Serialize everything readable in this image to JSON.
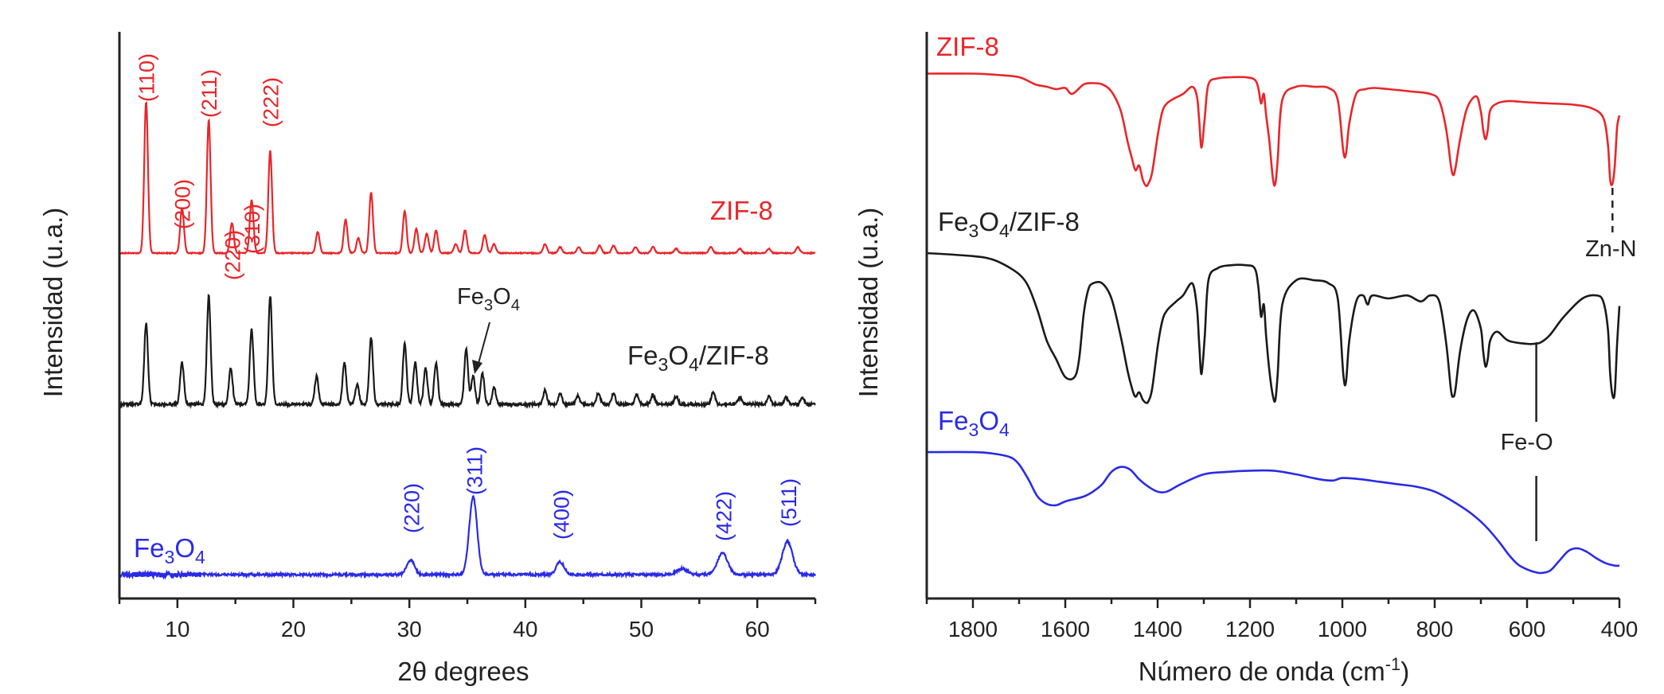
{
  "colors": {
    "zif8": "#e8262a",
    "composite": "#1a1a1a",
    "fe3o4": "#2a2ae6",
    "axis": "#222222"
  },
  "chart_data": [
    {
      "type": "line",
      "xlabel": "2θ degrees",
      "ylabel": "Intensidad (u.a.)",
      "xlim": [
        5,
        65
      ],
      "xticks": [
        10,
        20,
        30,
        40,
        50,
        60
      ],
      "series": [
        {
          "name": "ZIF-8",
          "color": "#e8262a",
          "peaks": [
            [
              7.3,
              1.0
            ],
            [
              10.4,
              0.3
            ],
            [
              12.7,
              0.88
            ],
            [
              14.7,
              0.2
            ],
            [
              16.4,
              0.35
            ],
            [
              18.0,
              0.68
            ],
            [
              22.1,
              0.14
            ],
            [
              24.5,
              0.22
            ],
            [
              25.6,
              0.1
            ],
            [
              26.7,
              0.4
            ],
            [
              29.6,
              0.28
            ],
            [
              30.6,
              0.16
            ],
            [
              31.5,
              0.13
            ],
            [
              32.3,
              0.15
            ],
            [
              34.0,
              0.06
            ],
            [
              34.8,
              0.15
            ],
            [
              36.5,
              0.12
            ],
            [
              37.3,
              0.06
            ],
            [
              41.7,
              0.06
            ],
            [
              43.0,
              0.04
            ],
            [
              44.6,
              0.04
            ],
            [
              46.4,
              0.05
            ],
            [
              47.6,
              0.05
            ],
            [
              49.5,
              0.04
            ],
            [
              51.0,
              0.04
            ],
            [
              53.0,
              0.03
            ],
            [
              56.0,
              0.04
            ],
            [
              58.5,
              0.03
            ],
            [
              61.0,
              0.03
            ],
            [
              63.5,
              0.04
            ]
          ]
        },
        {
          "name": "Fe3O4/ZIF-8",
          "color": "#1a1a1a",
          "peaks": [
            [
              7.3,
              0.58
            ],
            [
              10.4,
              0.3
            ],
            [
              12.7,
              0.78
            ],
            [
              14.6,
              0.26
            ],
            [
              16.4,
              0.54
            ],
            [
              18.0,
              0.78
            ],
            [
              22.0,
              0.2
            ],
            [
              24.4,
              0.3
            ],
            [
              25.5,
              0.14
            ],
            [
              26.7,
              0.48
            ],
            [
              29.6,
              0.44
            ],
            [
              30.5,
              0.3
            ],
            [
              31.4,
              0.26
            ],
            [
              32.3,
              0.3
            ],
            [
              34.9,
              0.4
            ],
            [
              35.5,
              0.2
            ],
            [
              36.3,
              0.22
            ],
            [
              37.3,
              0.12
            ],
            [
              41.7,
              0.1
            ],
            [
              43.0,
              0.08
            ],
            [
              44.5,
              0.06
            ],
            [
              46.3,
              0.08
            ],
            [
              47.6,
              0.08
            ],
            [
              49.6,
              0.07
            ],
            [
              51.0,
              0.07
            ],
            [
              53.0,
              0.06
            ],
            [
              56.2,
              0.09
            ],
            [
              58.5,
              0.05
            ],
            [
              61.0,
              0.06
            ],
            [
              62.5,
              0.05
            ],
            [
              63.9,
              0.05
            ]
          ]
        },
        {
          "name": "Fe3O4",
          "color": "#2a2ae6",
          "peaks": [
            [
              30.1,
              0.15
            ],
            [
              35.5,
              0.8
            ],
            [
              43.0,
              0.13
            ],
            [
              53.5,
              0.06
            ],
            [
              57.0,
              0.22
            ],
            [
              62.6,
              0.34
            ]
          ]
        }
      ],
      "labels": [
        {
          "text": "ZIF-8",
          "sub": "",
          "series": "ZIF-8"
        },
        {
          "text": "Fe",
          "sub": "3",
          "text2": "O",
          "sub2": "4",
          "text3": "/ZIF-8",
          "series": "Fe3O4/ZIF-8"
        },
        {
          "text": "Fe",
          "sub": "3",
          "text2": "O",
          "sub2": "4",
          "text3": "",
          "series": "Fe3O4"
        }
      ],
      "hkl_zif8": [
        {
          "text": "(110)",
          "x": 7.3
        },
        {
          "text": "(200)",
          "x": 10.4
        },
        {
          "text": "(211)",
          "x": 12.7
        },
        {
          "text": "(220)",
          "x": 14.7
        },
        {
          "text": "(310)",
          "x": 16.4
        },
        {
          "text": "(222)",
          "x": 18.0
        }
      ],
      "hkl_fe3o4": [
        {
          "text": "(220)",
          "x": 30.1
        },
        {
          "text": "(311)",
          "x": 35.5
        },
        {
          "text": "(400)",
          "x": 43.0
        },
        {
          "text": "(422)",
          "x": 57.0
        },
        {
          "text": "(511)",
          "x": 62.6
        }
      ],
      "annotation": {
        "text": "Fe",
        "sub": "3",
        "text2": "O",
        "sub2": "4",
        "x": 35.5
      }
    },
    {
      "type": "line",
      "xlabel": "Número de onda (cm",
      "xlabel_sup": "-1",
      "xlabel_end": ")",
      "ylabel": "Intensidad (u.a.)",
      "xlim": [
        1900,
        400
      ],
      "xticks": [
        1800,
        1600,
        1400,
        1200,
        1000,
        800,
        600,
        400
      ],
      "series": [
        {
          "name": "ZIF-8",
          "color": "#e8262a",
          "x": [
            1900,
            1800,
            1750,
            1700,
            1665,
            1640,
            1620,
            1600,
            1585,
            1560,
            1540,
            1520,
            1500,
            1480,
            1465,
            1455,
            1448,
            1440,
            1432,
            1425,
            1420,
            1412,
            1400,
            1390,
            1380,
            1365,
            1345,
            1325,
            1315,
            1310,
            1305,
            1298,
            1290,
            1270,
            1240,
            1210,
            1190,
            1182,
            1176,
            1170,
            1165,
            1158,
            1150,
            1145,
            1140,
            1130,
            1100,
            1060,
            1030,
            1010,
            998,
            992,
            985,
            970,
            950,
            930,
            900,
            850,
            810,
            790,
            775,
            765,
            760,
            755,
            745,
            730,
            710,
            700,
            695,
            690,
            685,
            680,
            665,
            640,
            600,
            550,
            500,
            460,
            435,
            425,
            420,
            415,
            410,
            405,
            400
          ],
          "y": [
            0.97,
            0.97,
            0.96,
            0.94,
            0.88,
            0.86,
            0.84,
            0.85,
            0.8,
            0.88,
            0.89,
            0.88,
            0.82,
            0.66,
            0.4,
            0.25,
            0.16,
            0.2,
            0.08,
            0.03,
            0.05,
            0.14,
            0.45,
            0.65,
            0.72,
            0.76,
            0.8,
            0.86,
            0.78,
            0.58,
            0.35,
            0.6,
            0.88,
            0.93,
            0.94,
            0.94,
            0.92,
            0.85,
            0.72,
            0.8,
            0.62,
            0.4,
            0.08,
            0.05,
            0.25,
            0.75,
            0.86,
            0.86,
            0.85,
            0.75,
            0.32,
            0.3,
            0.55,
            0.8,
            0.84,
            0.85,
            0.84,
            0.82,
            0.8,
            0.74,
            0.5,
            0.2,
            0.12,
            0.18,
            0.42,
            0.68,
            0.78,
            0.65,
            0.5,
            0.42,
            0.5,
            0.66,
            0.72,
            0.74,
            0.73,
            0.72,
            0.71,
            0.68,
            0.6,
            0.38,
            0.08,
            0.05,
            0.2,
            0.52,
            0.62
          ]
        },
        {
          "name": "Fe3O4/ZIF-8",
          "color": "#1a1a1a",
          "x": [
            1900,
            1800,
            1760,
            1730,
            1700,
            1680,
            1660,
            1640,
            1620,
            1600,
            1580,
            1570,
            1560,
            1550,
            1540,
            1520,
            1500,
            1480,
            1465,
            1455,
            1448,
            1440,
            1432,
            1425,
            1420,
            1412,
            1400,
            1390,
            1380,
            1360,
            1345,
            1325,
            1315,
            1310,
            1305,
            1298,
            1290,
            1270,
            1240,
            1210,
            1190,
            1182,
            1176,
            1170,
            1165,
            1158,
            1150,
            1145,
            1140,
            1130,
            1100,
            1060,
            1030,
            1010,
            998,
            992,
            985,
            970,
            955,
            945,
            935,
            900,
            860,
            830,
            810,
            790,
            775,
            765,
            760,
            755,
            745,
            730,
            715,
            700,
            695,
            690,
            685,
            680,
            665,
            640,
            600,
            585,
            570,
            550,
            520,
            480,
            450,
            435,
            425,
            420,
            415,
            410,
            405,
            400
          ],
          "y": [
            1.0,
            0.98,
            0.96,
            0.92,
            0.86,
            0.78,
            0.62,
            0.42,
            0.3,
            0.18,
            0.18,
            0.3,
            0.6,
            0.76,
            0.8,
            0.8,
            0.7,
            0.45,
            0.22,
            0.1,
            0.05,
            0.08,
            0.03,
            0.01,
            0.02,
            0.1,
            0.38,
            0.55,
            0.62,
            0.68,
            0.72,
            0.8,
            0.64,
            0.4,
            0.2,
            0.45,
            0.82,
            0.9,
            0.92,
            0.92,
            0.9,
            0.78,
            0.58,
            0.66,
            0.45,
            0.22,
            0.05,
            0.03,
            0.2,
            0.66,
            0.82,
            0.82,
            0.8,
            0.7,
            0.2,
            0.15,
            0.42,
            0.68,
            0.72,
            0.66,
            0.72,
            0.7,
            0.72,
            0.68,
            0.72,
            0.68,
            0.4,
            0.1,
            0.05,
            0.1,
            0.35,
            0.56,
            0.62,
            0.5,
            0.35,
            0.25,
            0.3,
            0.42,
            0.48,
            0.42,
            0.4,
            0.4,
            0.41,
            0.46,
            0.58,
            0.7,
            0.72,
            0.68,
            0.5,
            0.2,
            0.06,
            0.08,
            0.4,
            0.65
          ]
        },
        {
          "name": "Fe3O4",
          "color": "#2a2ae6",
          "x": [
            1900,
            1800,
            1760,
            1720,
            1700,
            1680,
            1660,
            1640,
            1620,
            1600,
            1580,
            1560,
            1540,
            1520,
            1500,
            1480,
            1460,
            1440,
            1420,
            1400,
            1380,
            1350,
            1300,
            1250,
            1200,
            1150,
            1100,
            1050,
            1020,
            1000,
            960,
            920,
            880,
            840,
            800,
            760,
            720,
            690,
            660,
            640,
            620,
            600,
            585,
            570,
            550,
            530,
            510,
            490,
            470,
            450,
            430,
            410,
            400
          ],
          "y": [
            0.98,
            0.98,
            0.97,
            0.94,
            0.88,
            0.76,
            0.62,
            0.56,
            0.55,
            0.58,
            0.6,
            0.62,
            0.66,
            0.72,
            0.82,
            0.86,
            0.84,
            0.76,
            0.7,
            0.66,
            0.66,
            0.72,
            0.8,
            0.82,
            0.83,
            0.83,
            0.8,
            0.76,
            0.75,
            0.77,
            0.76,
            0.74,
            0.72,
            0.7,
            0.66,
            0.58,
            0.48,
            0.38,
            0.25,
            0.15,
            0.07,
            0.03,
            0.01,
            0.0,
            0.02,
            0.1,
            0.18,
            0.2,
            0.17,
            0.12,
            0.08,
            0.06,
            0.06
          ]
        }
      ],
      "labels": [
        {
          "text": "ZIF-8",
          "sub": "",
          "series": "ZIF-8"
        },
        {
          "text": "Fe",
          "sub": "3",
          "text2": "O",
          "sub2": "4",
          "text3": "/ZIF-8",
          "series": "Fe3O4/ZIF-8"
        },
        {
          "text": "Fe",
          "sub": "3",
          "text2": "O",
          "sub2": "4",
          "text3": "",
          "series": "Fe3O4"
        }
      ],
      "annotations": [
        {
          "text": "Zn-N",
          "x": 415
        },
        {
          "text": "Fe-O",
          "x": 580
        }
      ]
    }
  ]
}
